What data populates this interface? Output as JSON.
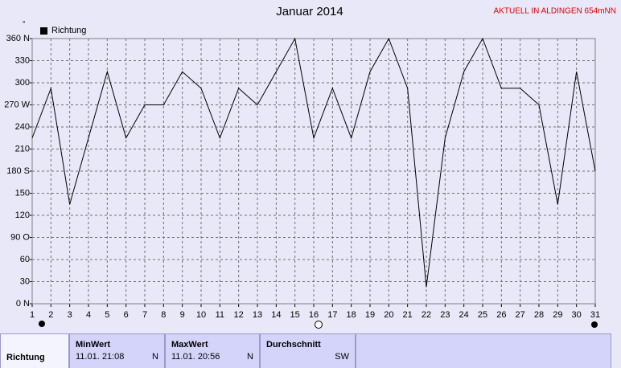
{
  "chart_data": {
    "type": "line",
    "title": "Januar 2014",
    "annotations": [
      "AKTUELL IN ALDINGEN 654mNN"
    ],
    "ylabel": "°",
    "x": [
      1,
      2,
      3,
      4,
      5,
      6,
      7,
      8,
      9,
      10,
      11,
      12,
      13,
      14,
      15,
      16,
      17,
      18,
      19,
      20,
      21,
      22,
      23,
      24,
      25,
      26,
      27,
      28,
      29,
      30,
      31
    ],
    "series": [
      {
        "name": "Richtung",
        "color": "#000000",
        "values": [
          225,
          292.5,
          135,
          225,
          315,
          225,
          270,
          270,
          315,
          292.5,
          225,
          292.5,
          270,
          315,
          360,
          225,
          292.5,
          225,
          315,
          360,
          292.5,
          22.5,
          225,
          315,
          360,
          292.5,
          292.5,
          270,
          135,
          315,
          180
        ]
      }
    ],
    "xlim": [
      1,
      31
    ],
    "xticks": [
      1,
      2,
      3,
      4,
      5,
      6,
      7,
      8,
      9,
      10,
      11,
      12,
      13,
      14,
      15,
      16,
      17,
      18,
      19,
      20,
      21,
      22,
      23,
      24,
      25,
      26,
      27,
      28,
      29,
      30,
      31
    ],
    "ylim": [
      0,
      360
    ],
    "yticks": [
      {
        "value": 0,
        "label": "0 N"
      },
      30,
      60,
      {
        "value": 90,
        "label": "90 O"
      },
      120,
      150,
      {
        "value": 180,
        "label": "180 S"
      },
      210,
      240,
      {
        "value": 270,
        "label": "270 W"
      },
      300,
      330,
      {
        "value": 360,
        "label": "360 N"
      }
    ],
    "grid": true,
    "legend": "top-left"
  },
  "summary": {
    "row_label": "Richtung",
    "columns": [
      {
        "header": "MinWert",
        "time": "11.01.  21:08",
        "value": "N"
      },
      {
        "header": "MaxWert",
        "time": "11.01.  20:56",
        "value": "N"
      },
      {
        "header": "Durchschnitt",
        "value": "SW"
      }
    ]
  }
}
